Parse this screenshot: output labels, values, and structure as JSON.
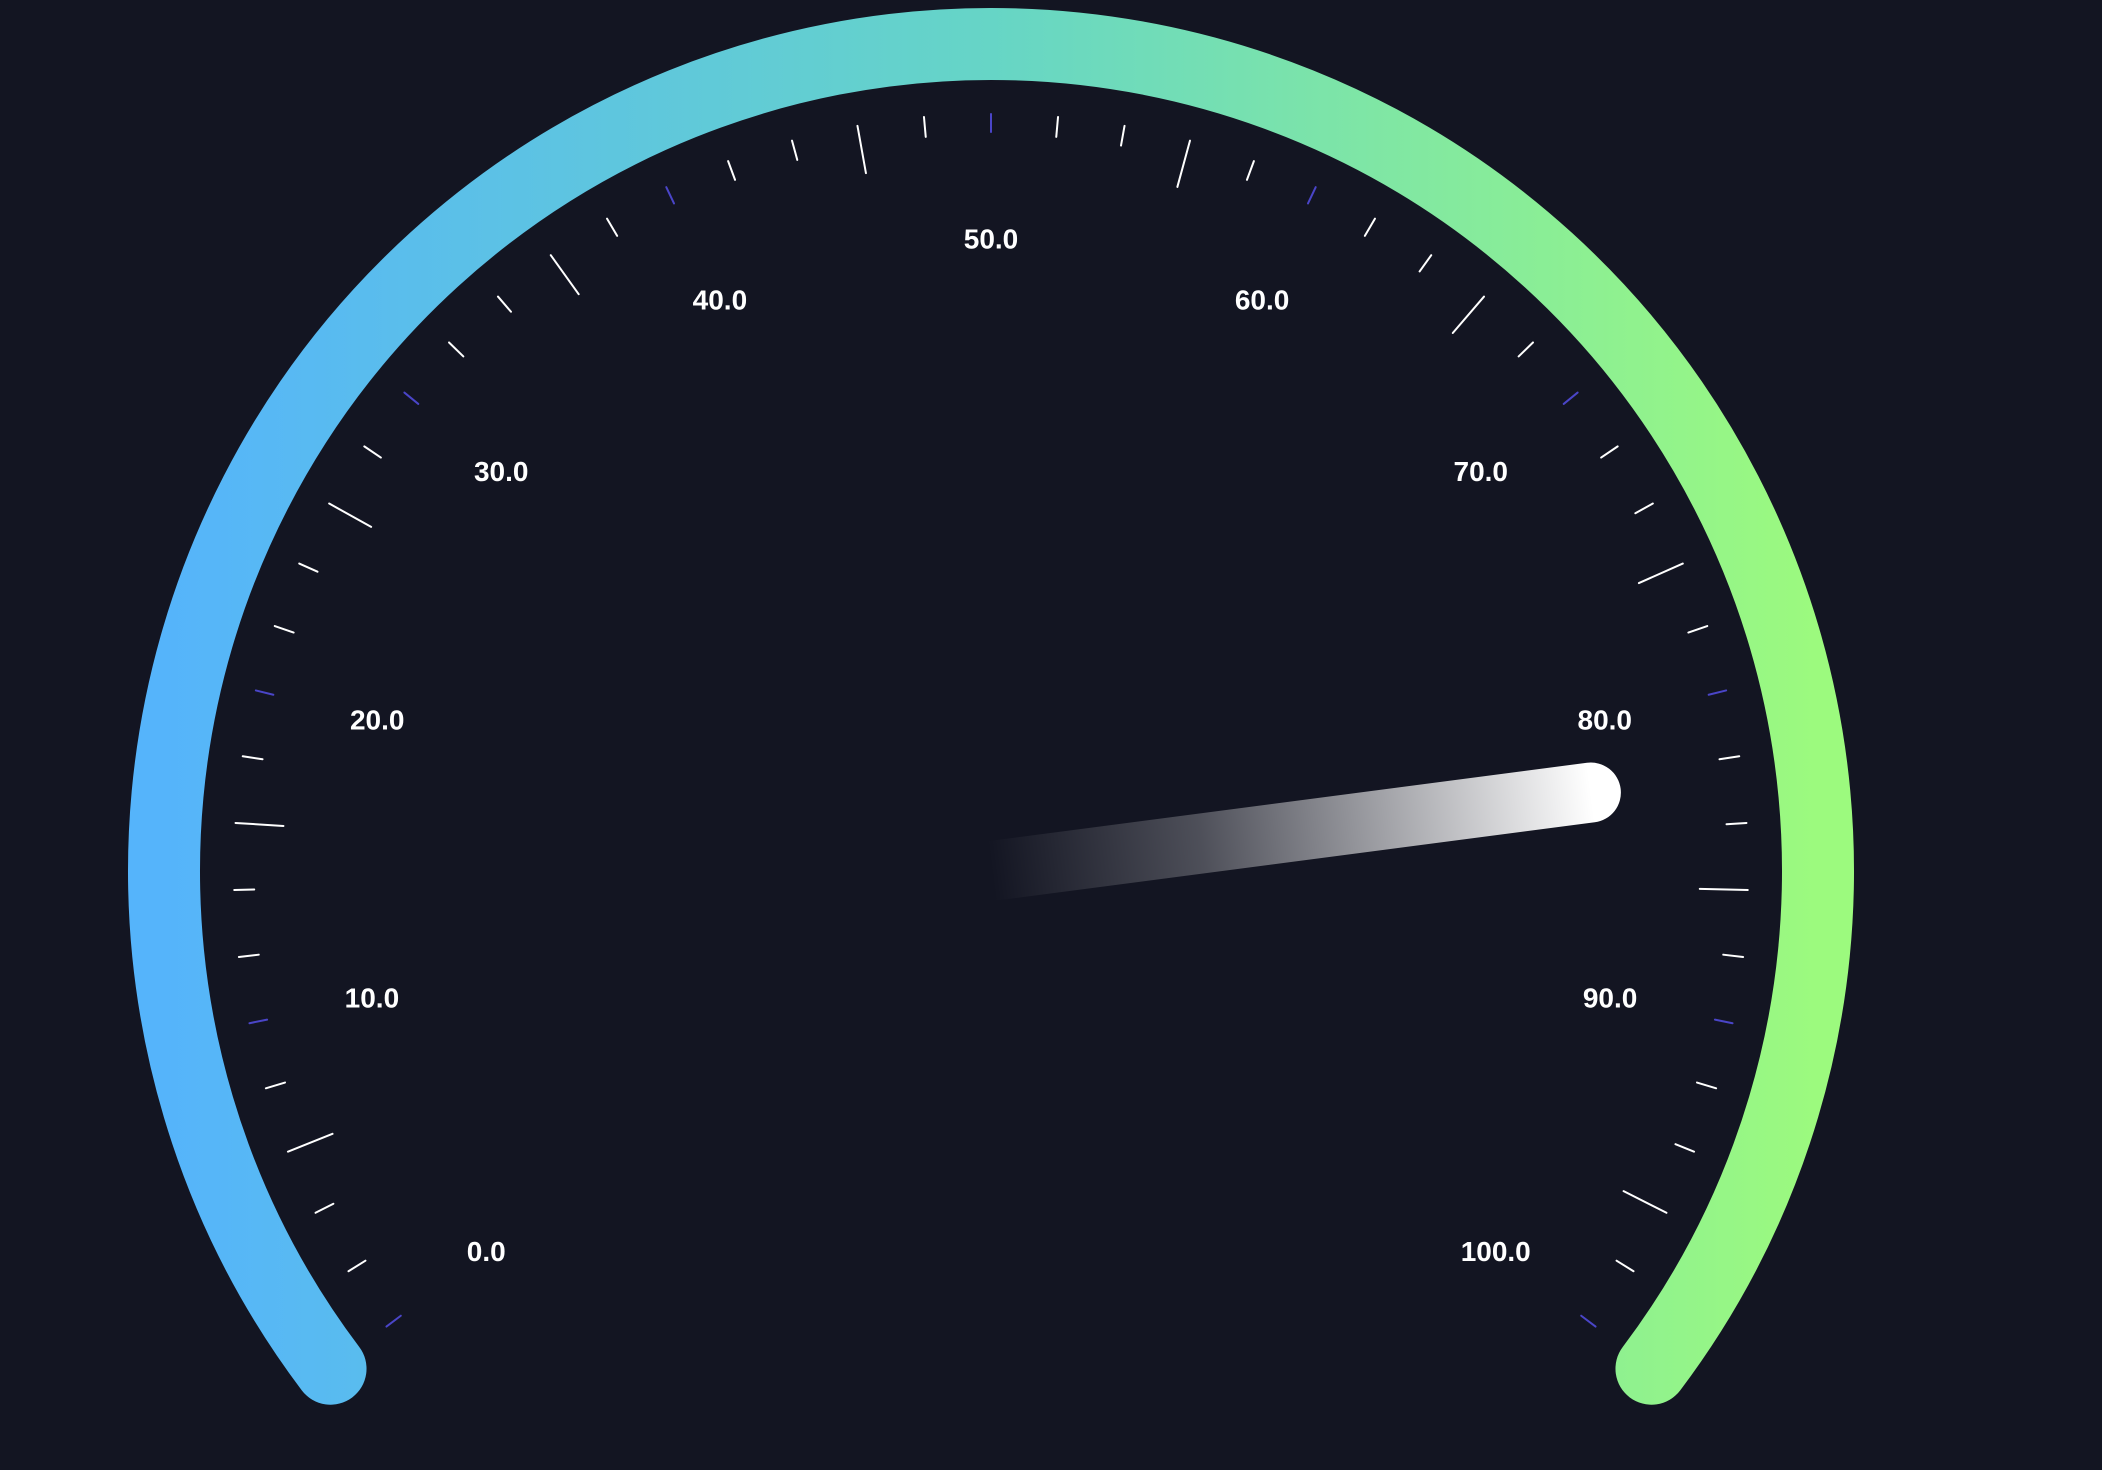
{
  "gauge": {
    "min": 0,
    "max": 100,
    "value": 82.5,
    "labels": [
      "0.0",
      "10.0",
      "20.0",
      "30.0",
      "40.0",
      "50.0",
      "60.0",
      "70.0",
      "80.0",
      "90.0",
      "100.0"
    ],
    "minor_ticks_per_major": 5,
    "colors": {
      "background": "#131522",
      "arc_start": "#55b4fb",
      "arc_mid": "#66d5c6",
      "arc_end": "#9cfa7e",
      "tick": "#ffffff",
      "major_tick_mark": "#4a45c8",
      "needle": "#ffffff"
    }
  }
}
